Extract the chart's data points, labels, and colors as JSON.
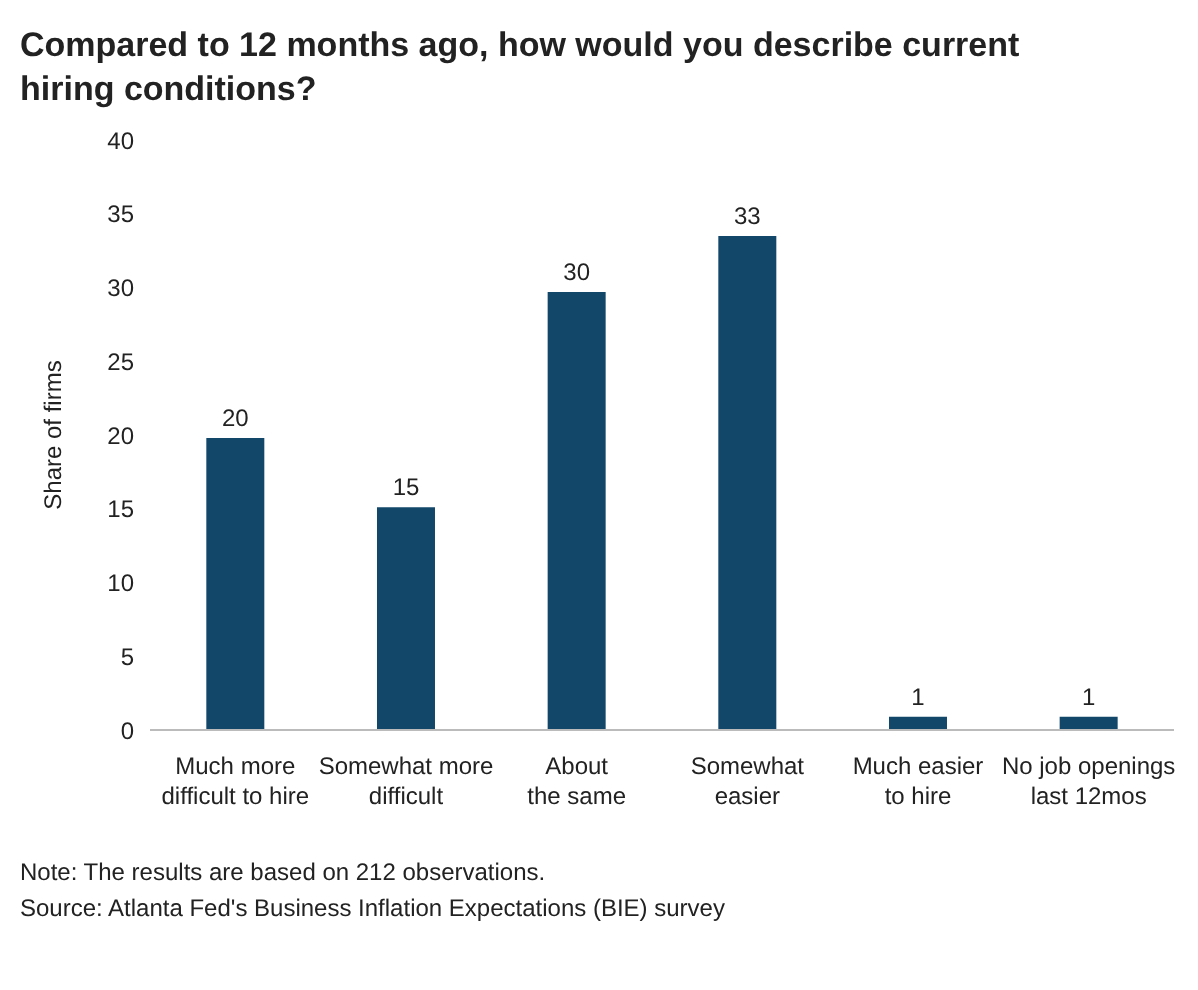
{
  "chart_data": {
    "type": "bar",
    "title": "Compared to 12 months ago, how would you describe current hiring conditions?",
    "ylabel": "Share of firms",
    "categories": [
      "Much more difficult to hire",
      "Somewhat more difficult",
      "About the same",
      "Somewhat easier",
      "Much easier to hire",
      "No job openings last 12mos"
    ],
    "values": [
      19.8,
      15.1,
      29.7,
      33.5,
      0.9,
      0.9
    ],
    "value_labels": [
      "20",
      "15",
      "30",
      "33",
      "1",
      "1"
    ],
    "color": "#12476a",
    "ylim": [
      0,
      40
    ],
    "yticks": [
      0,
      5,
      10,
      15,
      20,
      25,
      30,
      35,
      40
    ],
    "grid": false,
    "legend": false,
    "annotations": [
      "Note: The results are based on 212 observations.",
      "Source: Atlanta Fed's Business Inflation Expectations (BIE) survey"
    ]
  }
}
